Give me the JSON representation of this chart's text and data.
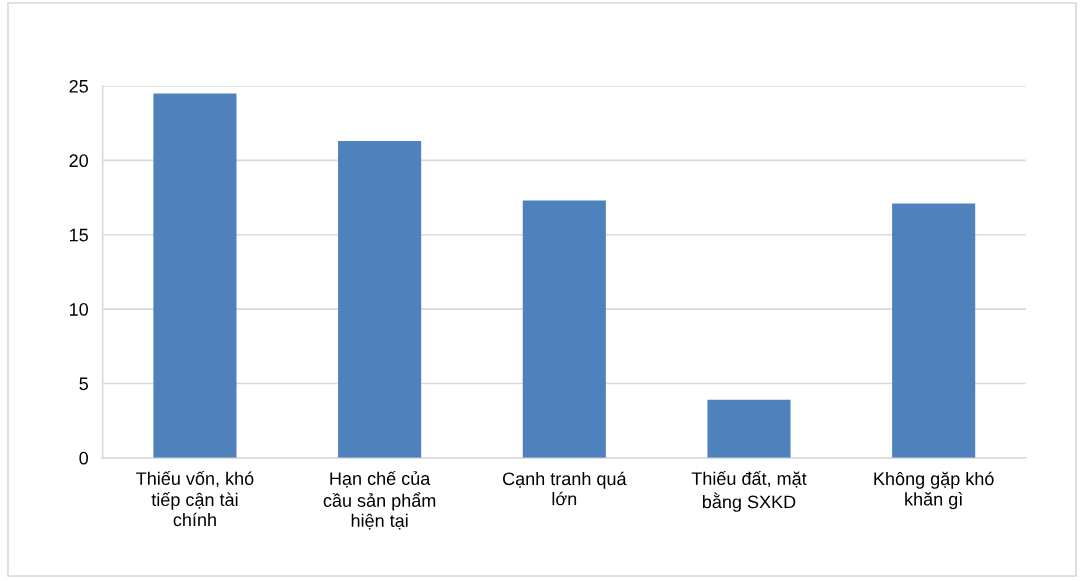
{
  "chart_data": {
    "type": "bar",
    "categories": [
      "Thiếu vốn, khó\ntiếp cận tài\nchính",
      "Hạn chế của\ncầu sản phẩm\nhiện tại",
      "Cạnh tranh quá\nlớn",
      "Thiếu đất, mặt\nbằng SXKD",
      "Không gặp khó\nkhăn gì"
    ],
    "values": [
      24.5,
      21.3,
      17.3,
      3.9,
      17.1
    ],
    "color": "#4f81bd",
    "ylim": [
      0,
      25
    ],
    "yticks": [
      0,
      5,
      10,
      15,
      20,
      25
    ],
    "grid": "y"
  }
}
